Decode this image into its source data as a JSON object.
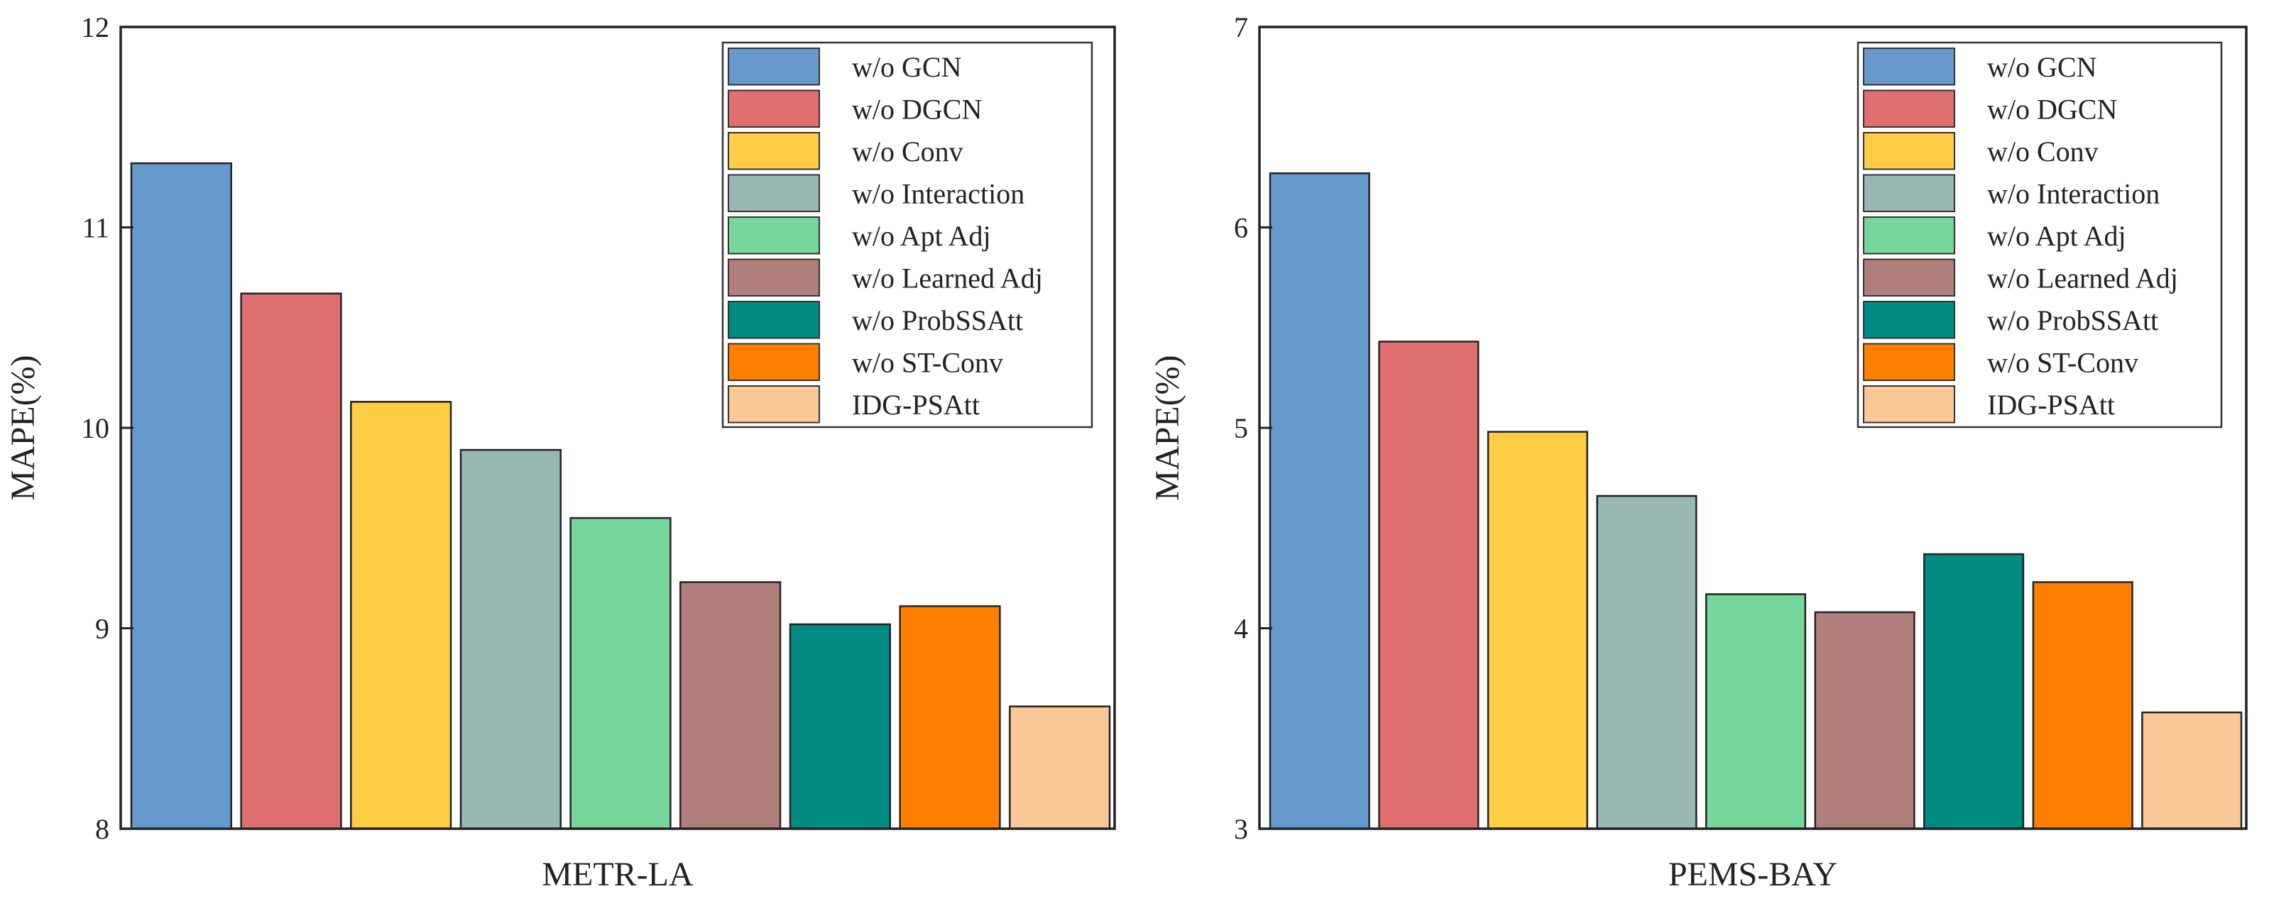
{
  "chart_data": [
    {
      "type": "bar",
      "xlabel": "METR-LA",
      "ylabel": "MAPE(%)",
      "ylim": [
        8,
        12
      ],
      "yticks": [
        8,
        9,
        10,
        11,
        12
      ],
      "categories": [
        "w/o GCN",
        "w/o DGCN",
        "w/o Conv",
        "w/o Interaction",
        "w/o Apt Adj",
        "w/o Learned Adj",
        "w/o ProbSSAtt",
        "w/o ST-Conv",
        "IDG-PSAtt"
      ],
      "values": [
        11.32,
        10.67,
        10.13,
        9.89,
        9.55,
        9.23,
        9.02,
        9.11,
        8.61
      ],
      "colors": [
        "#6699cc",
        "#e07070",
        "#ffcc44",
        "#99b8b4",
        "#77d699",
        "#b07f7c",
        "#008b83",
        "#ff8000",
        "#fac896"
      ],
      "legend": "top-right",
      "grid": false
    },
    {
      "type": "bar",
      "xlabel": "PEMS-BAY",
      "ylabel": "MAPE(%)",
      "ylim": [
        3,
        7
      ],
      "yticks": [
        3,
        4,
        5,
        6,
        7
      ],
      "categories": [
        "w/o GCN",
        "w/o DGCN",
        "w/o Conv",
        "w/o Interaction",
        "w/o Apt Adj",
        "w/o Learned Adj",
        "w/o ProbSSAtt",
        "w/o ST-Conv",
        "IDG-PSAtt"
      ],
      "values": [
        6.27,
        5.43,
        4.98,
        4.66,
        4.17,
        4.08,
        4.37,
        4.23,
        3.58
      ],
      "colors": [
        "#6699cc",
        "#e07070",
        "#ffcc44",
        "#99b8b4",
        "#77d699",
        "#b07f7c",
        "#008b83",
        "#ff8000",
        "#fac896"
      ],
      "legend": "top-right",
      "grid": false
    }
  ]
}
